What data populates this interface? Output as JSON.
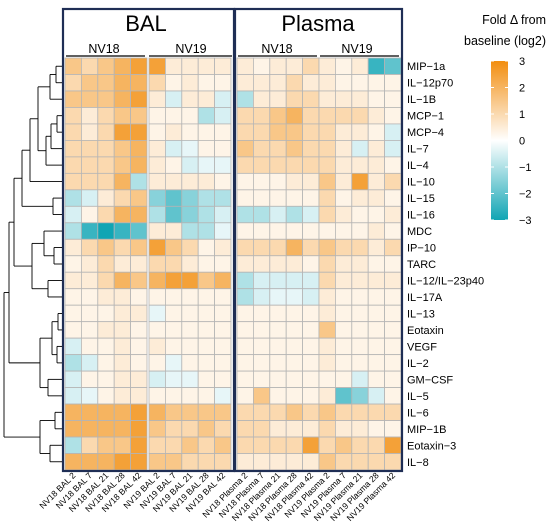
{
  "chart_data": {
    "type": "heatmap",
    "panels": [
      {
        "title": "BAL",
        "groups": [
          "NV18",
          "NV19"
        ]
      },
      {
        "title": "Plasma",
        "groups": [
          "NV18",
          "NV19"
        ]
      }
    ],
    "columns": [
      "NV18 BAL 2",
      "NV18 BAL 7",
      "NV18 BAL 21",
      "NV18 BAL 28",
      "NV18 BAL 42",
      "NV19 BAL 2",
      "NV19 BAL 7",
      "NV19 BAL 21",
      "NV19 BAL 28",
      "NV19 BAL 42",
      "NV18 Plasma 2",
      "NV18 Plasma 7",
      "NV18 Plasma 21",
      "NV18 Plasma 28",
      "NV18 Plasma 42",
      "NV19 Plasma 2",
      "NV19 Plasma 7",
      "NV19 Plasma 21",
      "NV19 Plasma 28",
      "NV19 Plasma 42"
    ],
    "rows": [
      "MIP−1a",
      "IL−12p70",
      "IL−1B",
      "MCP−1",
      "MCP−4",
      "IL−7",
      "IL−4",
      "IL−10",
      "IL−15",
      "IL−16",
      "MDC",
      "IP−10",
      "TARC",
      "IL−12/IL−23p40",
      "IL−17A",
      "IL−13",
      "Eotaxin",
      "VEGF",
      "IL−2",
      "GM−CSF",
      "IL−5",
      "IL−6",
      "MIP−1B",
      "Eotaxin−3",
      "IL−8"
    ],
    "values": [
      [
        1.5,
        1.0,
        1.5,
        2.0,
        2.5,
        2.5,
        0.5,
        0.5,
        0.5,
        0.5,
        0.5,
        0.3,
        0.5,
        0.5,
        1.0,
        0.5,
        0.3,
        0.5,
        -2.5,
        -2.0
      ],
      [
        1.0,
        1.5,
        1.5,
        2.0,
        2.0,
        1.0,
        0.3,
        0.5,
        0.3,
        0.3,
        0.5,
        0.5,
        0.5,
        1.0,
        0.5,
        0.5,
        0.3,
        0.3,
        0.3,
        0.3
      ],
      [
        1.5,
        1.5,
        1.5,
        2.0,
        2.5,
        0.5,
        -0.5,
        0.5,
        0.5,
        -0.5,
        -1.0,
        0.5,
        0.5,
        1.0,
        1.0,
        0.5,
        0.5,
        0.5,
        0.3,
        0.3
      ],
      [
        1.0,
        0.5,
        1.0,
        1.5,
        1.5,
        0.3,
        0.3,
        0.3,
        -1.0,
        -0.5,
        1.0,
        1.0,
        1.5,
        2.0,
        1.0,
        1.0,
        1.0,
        1.0,
        0.5,
        0.3
      ],
      [
        1.0,
        0.5,
        1.0,
        2.5,
        2.5,
        0.3,
        0.5,
        0.3,
        0.3,
        0.3,
        1.0,
        1.0,
        1.5,
        1.5,
        1.0,
        1.0,
        0.5,
        0.5,
        0.3,
        -0.5
      ],
      [
        1.0,
        1.0,
        1.0,
        1.5,
        2.0,
        0.5,
        -0.5,
        -0.3,
        0.3,
        0.3,
        1.5,
        1.0,
        1.0,
        1.5,
        1.0,
        1.0,
        0.5,
        -0.5,
        0.5,
        -0.5
      ],
      [
        1.0,
        1.0,
        1.0,
        1.5,
        2.0,
        0.5,
        0.3,
        -0.5,
        -0.3,
        -0.3,
        1.0,
        1.0,
        1.0,
        1.0,
        1.0,
        1.0,
        0.5,
        0.5,
        0.5,
        0.3
      ],
      [
        1.0,
        1.0,
        1.0,
        2.0,
        -1.0,
        0.5,
        0.5,
        0.5,
        0.5,
        0.3,
        0.3,
        0.3,
        0.3,
        0.5,
        0.5,
        1.5,
        0.5,
        2.5,
        0.5,
        1.0
      ],
      [
        -1.0,
        -0.5,
        0.5,
        1.0,
        1.5,
        -1.5,
        -2.0,
        -1.5,
        -1.0,
        -1.0,
        0.3,
        0.3,
        0.3,
        0.3,
        0.3,
        1.0,
        0.3,
        0.5,
        0.5,
        0.3
      ],
      [
        -0.5,
        0.3,
        1.0,
        2.0,
        2.0,
        -1.0,
        -2.0,
        -1.5,
        -1.0,
        -0.5,
        -1.0,
        -1.0,
        -0.5,
        -1.0,
        -0.5,
        1.0,
        0.5,
        0.3,
        0.3,
        0.5
      ],
      [
        -1.0,
        -2.5,
        -3.0,
        -2.5,
        -2.0,
        0.5,
        0.5,
        -1.0,
        -1.0,
        -0.3,
        0.3,
        0.3,
        0.3,
        0.3,
        0.3,
        0.3,
        0.3,
        0.3,
        0.5,
        0.3
      ],
      [
        0.5,
        1.0,
        1.5,
        1.0,
        1.5,
        2.5,
        1.5,
        1.0,
        0.3,
        0.5,
        1.0,
        1.0,
        1.0,
        2.0,
        1.0,
        1.5,
        1.0,
        1.0,
        0.5,
        1.0
      ],
      [
        0.3,
        0.5,
        1.0,
        0.5,
        0.5,
        1.0,
        1.0,
        0.5,
        0.3,
        0.3,
        0.5,
        0.5,
        0.5,
        0.5,
        0.3,
        1.0,
        0.5,
        0.5,
        0.3,
        0.3
      ],
      [
        0.5,
        0.5,
        1.0,
        2.0,
        1.5,
        2.0,
        2.5,
        2.5,
        1.5,
        2.0,
        -1.0,
        -0.5,
        -0.5,
        -0.5,
        -0.5,
        1.0,
        0.5,
        0.5,
        0.5,
        0.5
      ],
      [
        0.3,
        0.3,
        0.5,
        0.5,
        0.3,
        0.3,
        0.3,
        0.3,
        0.3,
        0.3,
        -1.0,
        -0.5,
        -0.3,
        -0.3,
        -0.5,
        0.5,
        0.3,
        0.3,
        0.3,
        0.3
      ],
      [
        0.3,
        0.3,
        0.3,
        0.5,
        0.5,
        -0.3,
        0.3,
        0.3,
        0.3,
        0.3,
        0.3,
        0.3,
        0.3,
        0.3,
        0.3,
        0.5,
        0.3,
        0.3,
        0.3,
        0.3
      ],
      [
        0.3,
        0.3,
        0.5,
        0.5,
        0.3,
        0.3,
        0.3,
        0.3,
        0.3,
        0.3,
        0.3,
        0.3,
        0.3,
        0.3,
        0.3,
        1.5,
        0.3,
        0.3,
        0.3,
        0.3
      ],
      [
        -0.5,
        0.3,
        0.3,
        0.5,
        0.3,
        0.5,
        0.3,
        0.3,
        0.3,
        0.3,
        0.3,
        0.3,
        0.3,
        0.3,
        0.3,
        0.5,
        0.3,
        0.3,
        0.3,
        0.3
      ],
      [
        -1.0,
        -0.5,
        0.3,
        0.5,
        0.3,
        0.3,
        -0.3,
        0.3,
        0.3,
        0.3,
        0.3,
        0.3,
        0.3,
        0.3,
        0.3,
        0.5,
        0.3,
        0.3,
        0.3,
        0.3
      ],
      [
        -0.5,
        0.3,
        0.3,
        0.5,
        0.5,
        -0.5,
        -0.3,
        -0.3,
        0.3,
        0.3,
        0.3,
        0.3,
        0.3,
        0.3,
        0.3,
        0.3,
        0.3,
        -0.5,
        0.3,
        0.3
      ],
      [
        -0.5,
        -0.3,
        0.3,
        0.5,
        0.5,
        0.3,
        0.3,
        0.3,
        0.3,
        -0.3,
        0.3,
        1.5,
        0.3,
        0.3,
        0.3,
        0.5,
        -2.0,
        -1.5,
        -0.5,
        0.3
      ],
      [
        2.0,
        2.0,
        2.0,
        2.0,
        2.5,
        2.0,
        1.5,
        1.5,
        1.5,
        1.5,
        1.0,
        1.0,
        1.0,
        1.5,
        1.0,
        1.5,
        1.0,
        1.0,
        1.0,
        1.0
      ],
      [
        2.0,
        2.0,
        2.0,
        2.0,
        2.5,
        1.5,
        1.0,
        1.0,
        1.5,
        1.0,
        1.0,
        1.0,
        0.5,
        0.5,
        0.5,
        1.0,
        0.5,
        0.5,
        0.3,
        0.3
      ],
      [
        -1.0,
        1.0,
        1.5,
        1.5,
        2.5,
        1.0,
        1.0,
        1.5,
        1.0,
        1.5,
        1.0,
        1.0,
        1.0,
        1.0,
        2.5,
        1.0,
        1.5,
        1.0,
        1.0,
        2.5
      ],
      [
        2.0,
        2.0,
        2.0,
        2.5,
        2.5,
        1.5,
        1.5,
        1.0,
        1.0,
        1.0,
        0.5,
        0.5,
        0.5,
        0.5,
        0.5,
        1.5,
        1.0,
        1.0,
        1.0,
        1.0
      ]
    ],
    "legend": {
      "title_line1": "Fold Δ from",
      "title_line2": "baseline (log2)",
      "ticks": [
        "3",
        "2",
        "1",
        "0",
        "−1",
        "−2",
        "−3"
      ],
      "range": [
        -3,
        3
      ]
    },
    "colors": {
      "high": "#f28e10",
      "mid": "#ffffff",
      "low": "#10a5b4",
      "panel_border": "#1f2e55",
      "cell_border": "#b5b5b5"
    },
    "dendrogram": "row clustering tree on left"
  }
}
